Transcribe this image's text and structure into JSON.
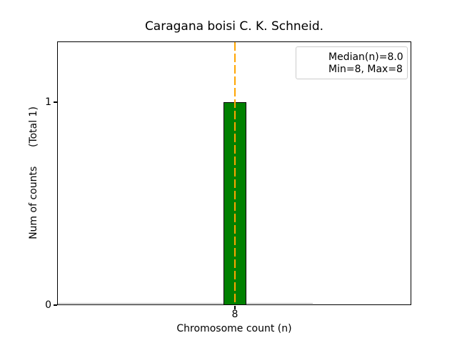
{
  "chart": {
    "title": "Caragana boisi C. K. Schneid.",
    "xlabel": "Chromosome count (n)",
    "ylabel": "Num of counts      (Total 1)",
    "yticks": [
      "1",
      "0"
    ],
    "xticks": [
      "8"
    ],
    "legend": [
      "Median(n)=8.0",
      "Min=8, Max=8"
    ]
  },
  "chart_data": {
    "type": "bar",
    "title": "Caragana boisi C. K. Schneid.",
    "xlabel": "Chromosome count (n)",
    "ylabel": "Num of counts (Total 1)",
    "categories": [
      8
    ],
    "values": [
      1
    ],
    "total_counts": 1,
    "median_n": 8.0,
    "min_n": 8,
    "max_n": 8,
    "yticks": [
      0,
      1
    ],
    "xticks": [
      8
    ],
    "ylim": [
      0,
      1.3
    ],
    "grid": false,
    "bar_color": "#008000",
    "bar_edge_color": "#000000",
    "median_line_color": "#FFA500",
    "median_line_style": "dashed",
    "zero_baseline_color": "#b0b0b0",
    "legend_position": "upper right",
    "legend_entries": [
      "Median(n)=8.0",
      "Min=8, Max=8"
    ]
  }
}
